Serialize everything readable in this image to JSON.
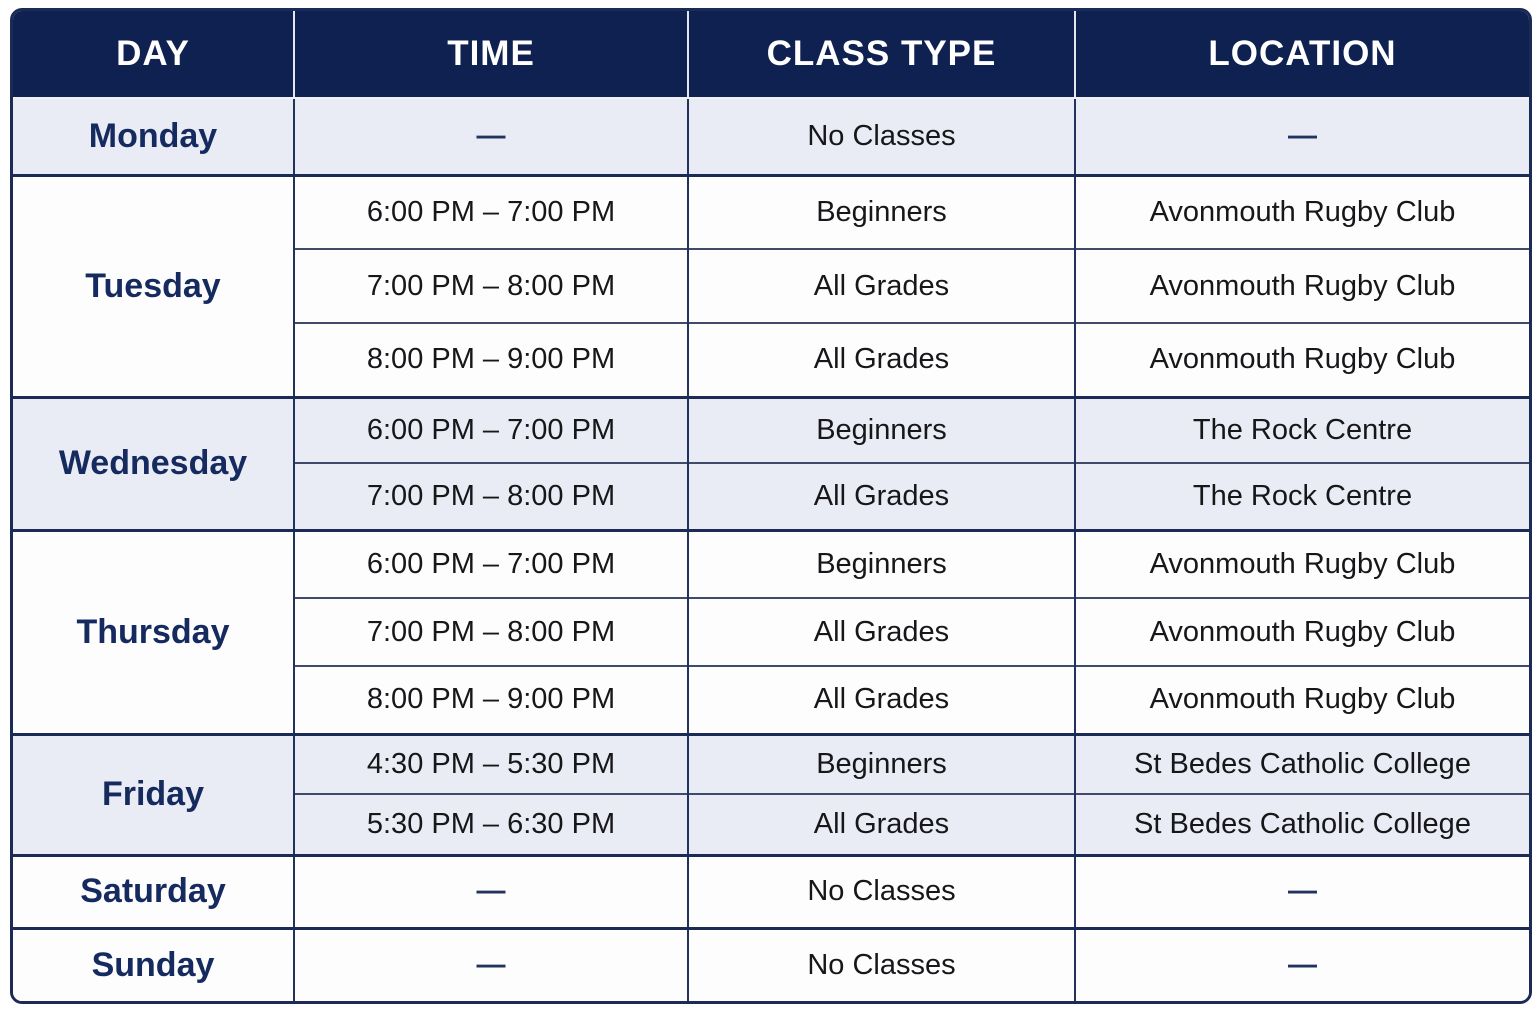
{
  "table": {
    "columns": [
      "DAY",
      "TIME",
      "CLASS TYPE",
      "LOCATION"
    ],
    "empty_marker": "—",
    "colors": {
      "header_bg": "#0f2150",
      "header_text": "#ffffff",
      "day_text": "#152a5e",
      "body_text": "#17171a",
      "tinted_row_bg": "#e9ecf4",
      "plain_row_bg": "#fdfdfe",
      "border": "#1c2b55"
    },
    "days": [
      {
        "day": "Monday",
        "shaded": true,
        "sessions": [
          {
            "time": "—",
            "class_type": "No Classes",
            "location": "—"
          }
        ]
      },
      {
        "day": "Tuesday",
        "shaded": false,
        "sessions": [
          {
            "time": "6:00 PM – 7:00 PM",
            "class_type": "Beginners",
            "location": "Avonmouth Rugby Club"
          },
          {
            "time": "7:00 PM – 8:00 PM",
            "class_type": "All Grades",
            "location": "Avonmouth Rugby Club"
          },
          {
            "time": "8:00 PM – 9:00 PM",
            "class_type": "All Grades",
            "location": "Avonmouth Rugby Club"
          }
        ]
      },
      {
        "day": "Wednesday",
        "shaded": true,
        "sessions": [
          {
            "time": "6:00 PM – 7:00 PM",
            "class_type": "Beginners",
            "location": "The Rock Centre"
          },
          {
            "time": "7:00 PM – 8:00 PM",
            "class_type": "All Grades",
            "location": "The Rock Centre"
          }
        ]
      },
      {
        "day": "Thursday",
        "shaded": false,
        "sessions": [
          {
            "time": "6:00 PM – 7:00 PM",
            "class_type": "Beginners",
            "location": "Avonmouth Rugby Club"
          },
          {
            "time": "7:00 PM – 8:00 PM",
            "class_type": "All Grades",
            "location": "Avonmouth Rugby Club"
          },
          {
            "time": "8:00 PM – 9:00 PM",
            "class_type": "All Grades",
            "location": "Avonmouth Rugby Club"
          }
        ]
      },
      {
        "day": "Friday",
        "shaded": true,
        "sessions": [
          {
            "time": "4:30 PM – 5:30 PM",
            "class_type": "Beginners",
            "location": "St Bedes Catholic College"
          },
          {
            "time": "5:30 PM – 6:30 PM",
            "class_type": "All Grades",
            "location": "St Bedes Catholic College"
          }
        ]
      },
      {
        "day": "Saturday",
        "shaded": false,
        "sessions": [
          {
            "time": "—",
            "class_type": "No Classes",
            "location": "—"
          }
        ]
      },
      {
        "day": "Sunday",
        "shaded": false,
        "sessions": [
          {
            "time": "—",
            "class_type": "No Classes",
            "location": "—"
          }
        ]
      }
    ]
  }
}
